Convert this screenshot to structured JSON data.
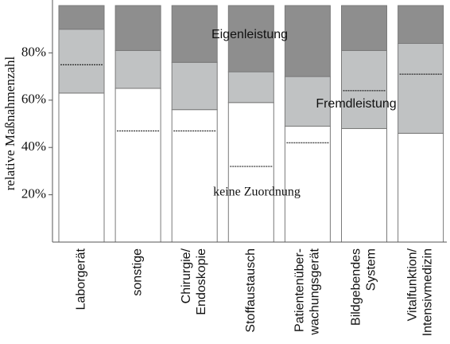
{
  "chart_data": {
    "type": "bar",
    "stacked": true,
    "y_label": "relative Maßnahmenzahl",
    "categories": [
      "Laborgerät",
      "sonstige",
      "Chirurgie/\nEndoskopie",
      "Stoffaustausch",
      "Patientenüber-\nwachungsgerät",
      "Bildgebendes\nSystem",
      "Vitalfunktion/\nIntensivmedizin"
    ],
    "series": [
      {
        "name": "keine Zuordnung",
        "color": "#ffffff",
        "values": [
          63,
          65,
          56,
          59,
          49,
          48,
          46
        ]
      },
      {
        "name": "Fremdleistung",
        "color": "#c0c2c3",
        "values": [
          27,
          16,
          20,
          13,
          21,
          33,
          38
        ]
      },
      {
        "name": "Eigenleistung",
        "color": "#8e8e8e",
        "values": [
          10,
          19,
          24,
          28,
          30,
          19,
          16
        ]
      }
    ],
    "dashed_values": [
      75,
      47,
      47,
      32,
      42,
      64,
      71
    ],
    "ylim": [
      0,
      100
    ],
    "yticks": [
      {
        "value": 20,
        "label": "20%"
      },
      {
        "value": 40,
        "label": "40%"
      },
      {
        "value": 60,
        "label": "60%"
      },
      {
        "value": 80,
        "label": "80%"
      }
    ]
  }
}
